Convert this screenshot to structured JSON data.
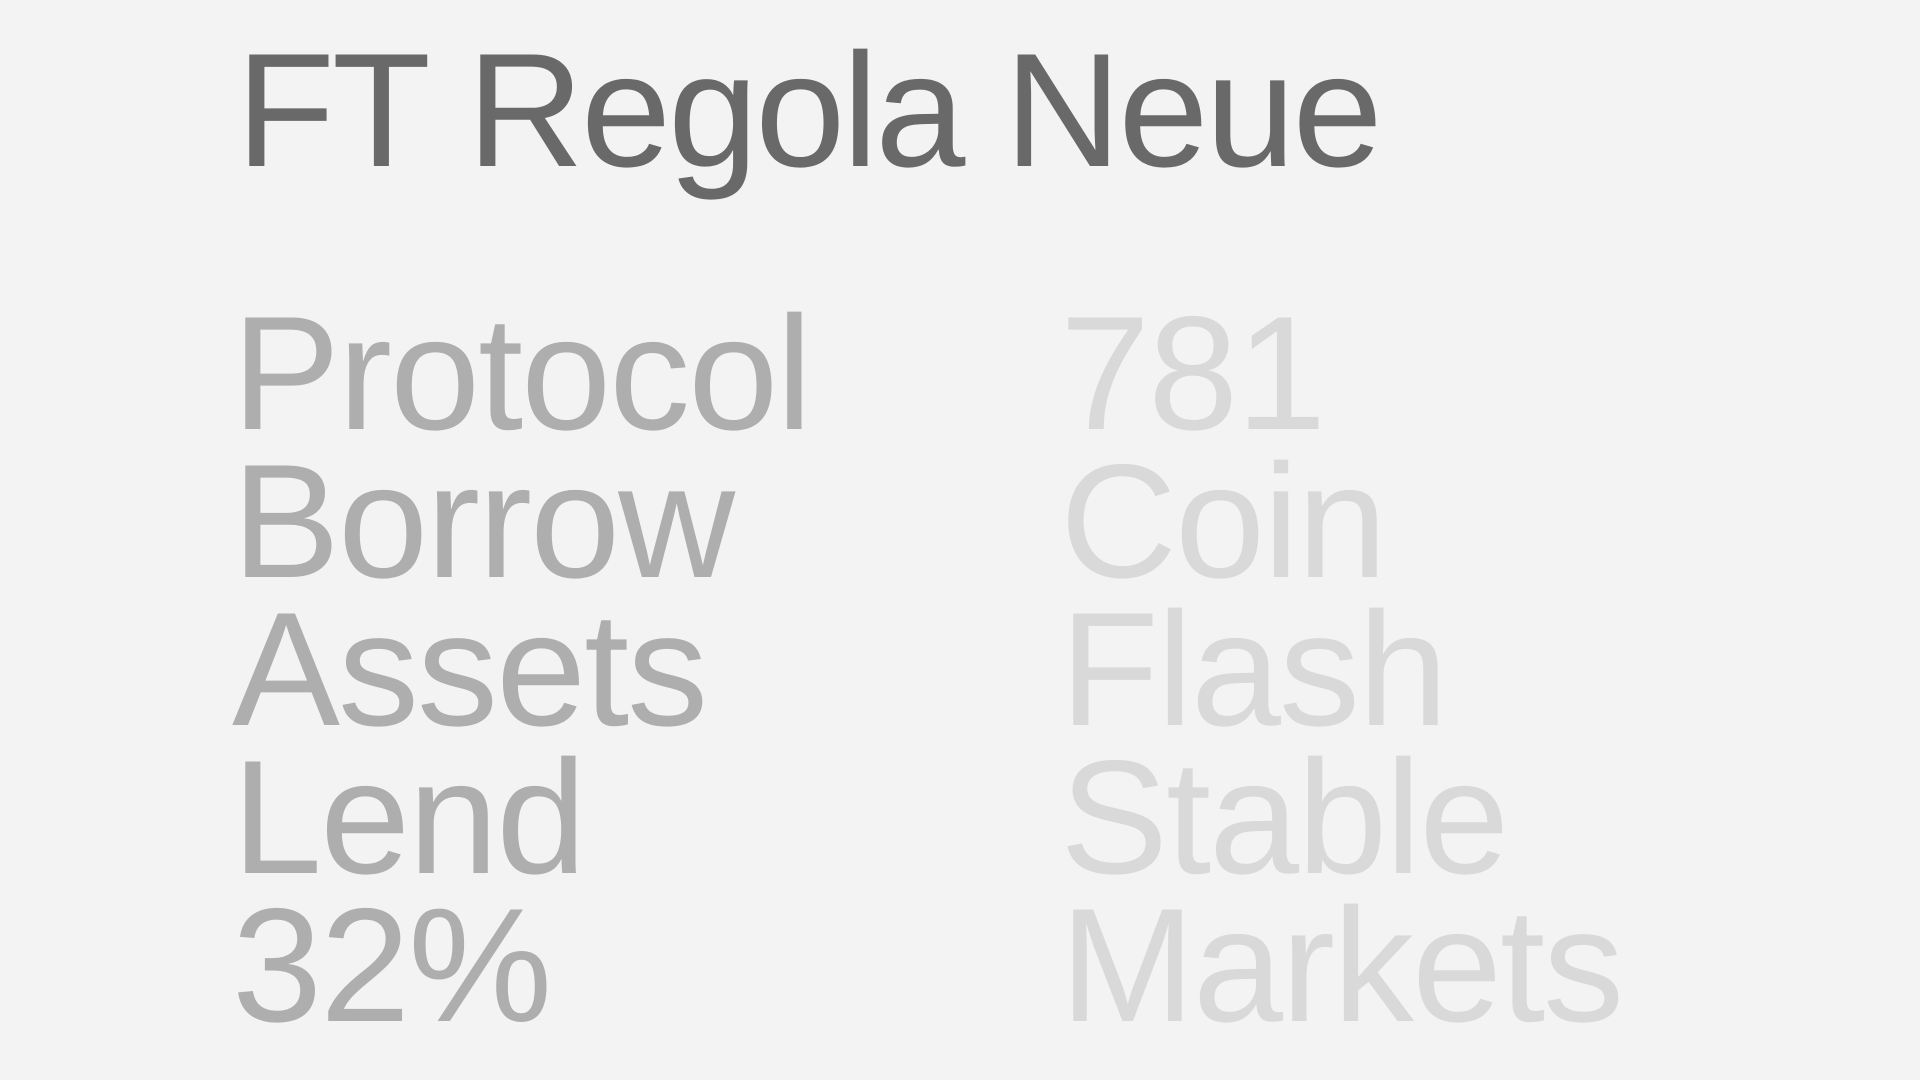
{
  "title": "FT Regola Neue",
  "left_words": [
    "Protocol",
    "Borrow",
    "Assets",
    "Lend",
    "32%"
  ],
  "right_words": [
    "781",
    "Coin",
    "Flash",
    "Stable",
    "Markets"
  ],
  "colors": {
    "background": "#f3f3f3",
    "title": "#696969",
    "left_column": "#aeaeae",
    "right_column": "#d9d9d9"
  }
}
